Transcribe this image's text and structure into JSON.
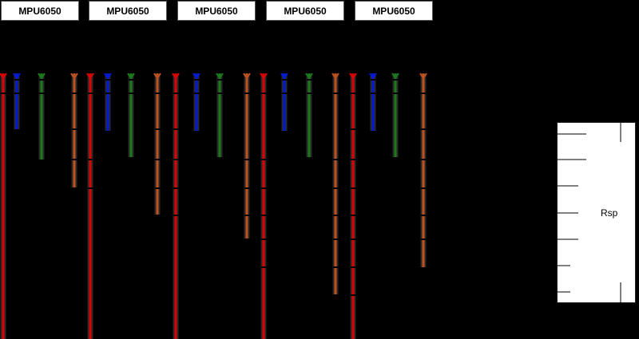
{
  "modules": [
    {
      "label": "MPU6050"
    },
    {
      "label": "MPU6050"
    },
    {
      "label": "MPU6050"
    },
    {
      "label": "MPU6050"
    },
    {
      "label": "MPU6050"
    }
  ],
  "rsp": {
    "label": "Rsp"
  },
  "colors": {
    "background": "#000000",
    "red": "#e00000",
    "orange": "#c0501c",
    "blue": "#0018d8",
    "green": "#1a7a1a",
    "box": "#ffffff"
  }
}
